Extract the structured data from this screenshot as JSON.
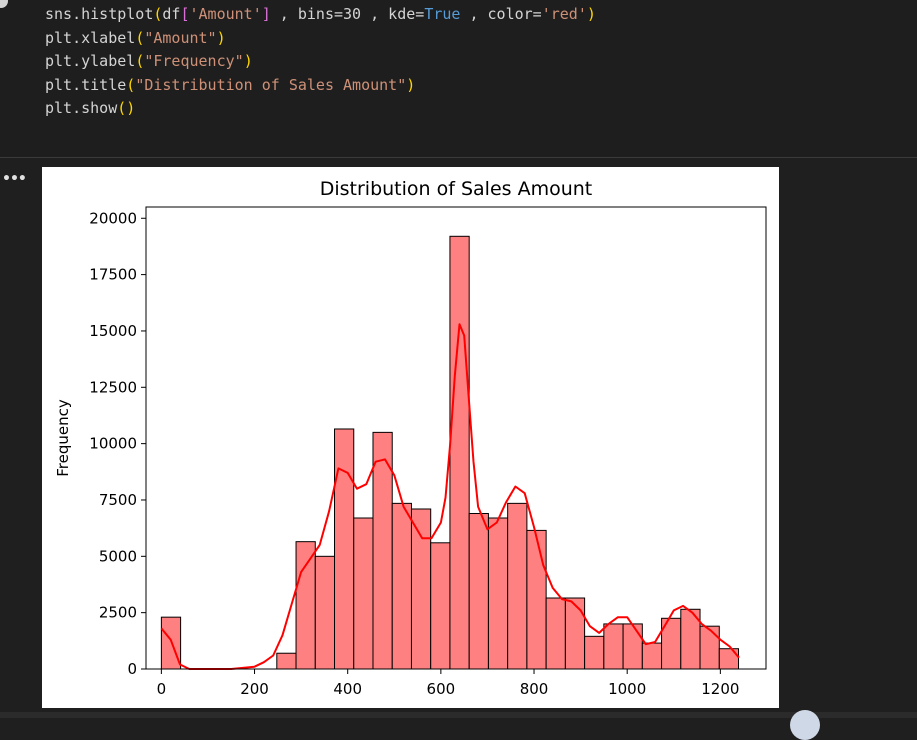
{
  "code_cell": {
    "lines": [
      [
        {
          "t": "sns.histplot",
          "c": "plain"
        },
        {
          "t": "(",
          "c": "brk-y"
        },
        {
          "t": "df",
          "c": "plain"
        },
        {
          "t": "[",
          "c": "brk-p"
        },
        {
          "t": "'Amount'",
          "c": "str"
        },
        {
          "t": "]",
          "c": "brk-p"
        },
        {
          "t": " , bins=30 , kde=",
          "c": "plain"
        },
        {
          "t": "True",
          "c": "kw"
        },
        {
          "t": " , color=",
          "c": "plain"
        },
        {
          "t": "'red'",
          "c": "str"
        },
        {
          "t": ")",
          "c": "brk-y"
        }
      ],
      [
        {
          "t": "plt.xlabel",
          "c": "plain"
        },
        {
          "t": "(",
          "c": "brk-y"
        },
        {
          "t": "\"Amount\"",
          "c": "str"
        },
        {
          "t": ")",
          "c": "brk-y"
        }
      ],
      [
        {
          "t": "plt.ylabel",
          "c": "plain"
        },
        {
          "t": "(",
          "c": "brk-y"
        },
        {
          "t": "\"Frequency\"",
          "c": "str"
        },
        {
          "t": ")",
          "c": "brk-y"
        }
      ],
      [
        {
          "t": "plt.title",
          "c": "plain"
        },
        {
          "t": "(",
          "c": "brk-y"
        },
        {
          "t": "\"Distribution of Sales Amount\"",
          "c": "str"
        },
        {
          "t": ")",
          "c": "brk-y"
        }
      ],
      [
        {
          "t": "plt.show",
          "c": "plain"
        },
        {
          "t": "()",
          "c": "brk-y"
        }
      ]
    ]
  },
  "output": {
    "more_icon": "•••"
  },
  "chart_data": {
    "type": "bar",
    "title": "Distribution of Sales Amount",
    "xlabel": "",
    "ylabel": "Frequency",
    "xlim": [
      -33,
      1298
    ],
    "ylim": [
      0,
      20500
    ],
    "x_ticks": [
      0,
      200,
      400,
      600,
      800,
      1000,
      1200
    ],
    "y_ticks": [
      0,
      2500,
      5000,
      7500,
      10000,
      12500,
      15000,
      17500,
      20000
    ],
    "bin_start": 0,
    "bin_width": 41.3,
    "values": [
      2300,
      0,
      0,
      0,
      0,
      0,
      700,
      5650,
      5000,
      10650,
      6700,
      10500,
      7350,
      7100,
      5600,
      19200,
      6900,
      6700,
      7350,
      6150,
      3150,
      3150,
      1450,
      2000,
      2000,
      1150,
      2250,
      2650,
      1900,
      900
    ],
    "bar_color": "#ff8080",
    "edge_color": "#000000",
    "kde": {
      "name": "",
      "color": "#ff0000",
      "x": [
        0,
        20,
        40,
        60,
        100,
        150,
        200,
        220,
        240,
        260,
        280,
        300,
        320,
        340,
        360,
        380,
        400,
        420,
        440,
        460,
        480,
        500,
        520,
        540,
        560,
        580,
        600,
        610,
        620,
        630,
        640,
        650,
        660,
        670,
        680,
        700,
        720,
        740,
        760,
        780,
        800,
        820,
        840,
        860,
        880,
        900,
        920,
        940,
        960,
        980,
        1000,
        1020,
        1040,
        1060,
        1080,
        1100,
        1120,
        1140,
        1160,
        1180,
        1200,
        1220,
        1240
      ],
      "y": [
        1800,
        1300,
        200,
        0,
        0,
        0,
        100,
        300,
        600,
        1500,
        2900,
        4300,
        4900,
        5500,
        7000,
        8900,
        8700,
        8000,
        8200,
        9200,
        9300,
        8600,
        7200,
        6500,
        5800,
        5800,
        6500,
        7600,
        10000,
        13000,
        15300,
        14800,
        12000,
        9200,
        7200,
        6200,
        6500,
        7400,
        8100,
        7800,
        6300,
        4600,
        3600,
        3100,
        3000,
        2600,
        1900,
        1600,
        2000,
        2300,
        2300,
        1700,
        1100,
        1200,
        1900,
        2600,
        2800,
        2500,
        2000,
        1700,
        1300,
        1000,
        500
      ]
    }
  }
}
